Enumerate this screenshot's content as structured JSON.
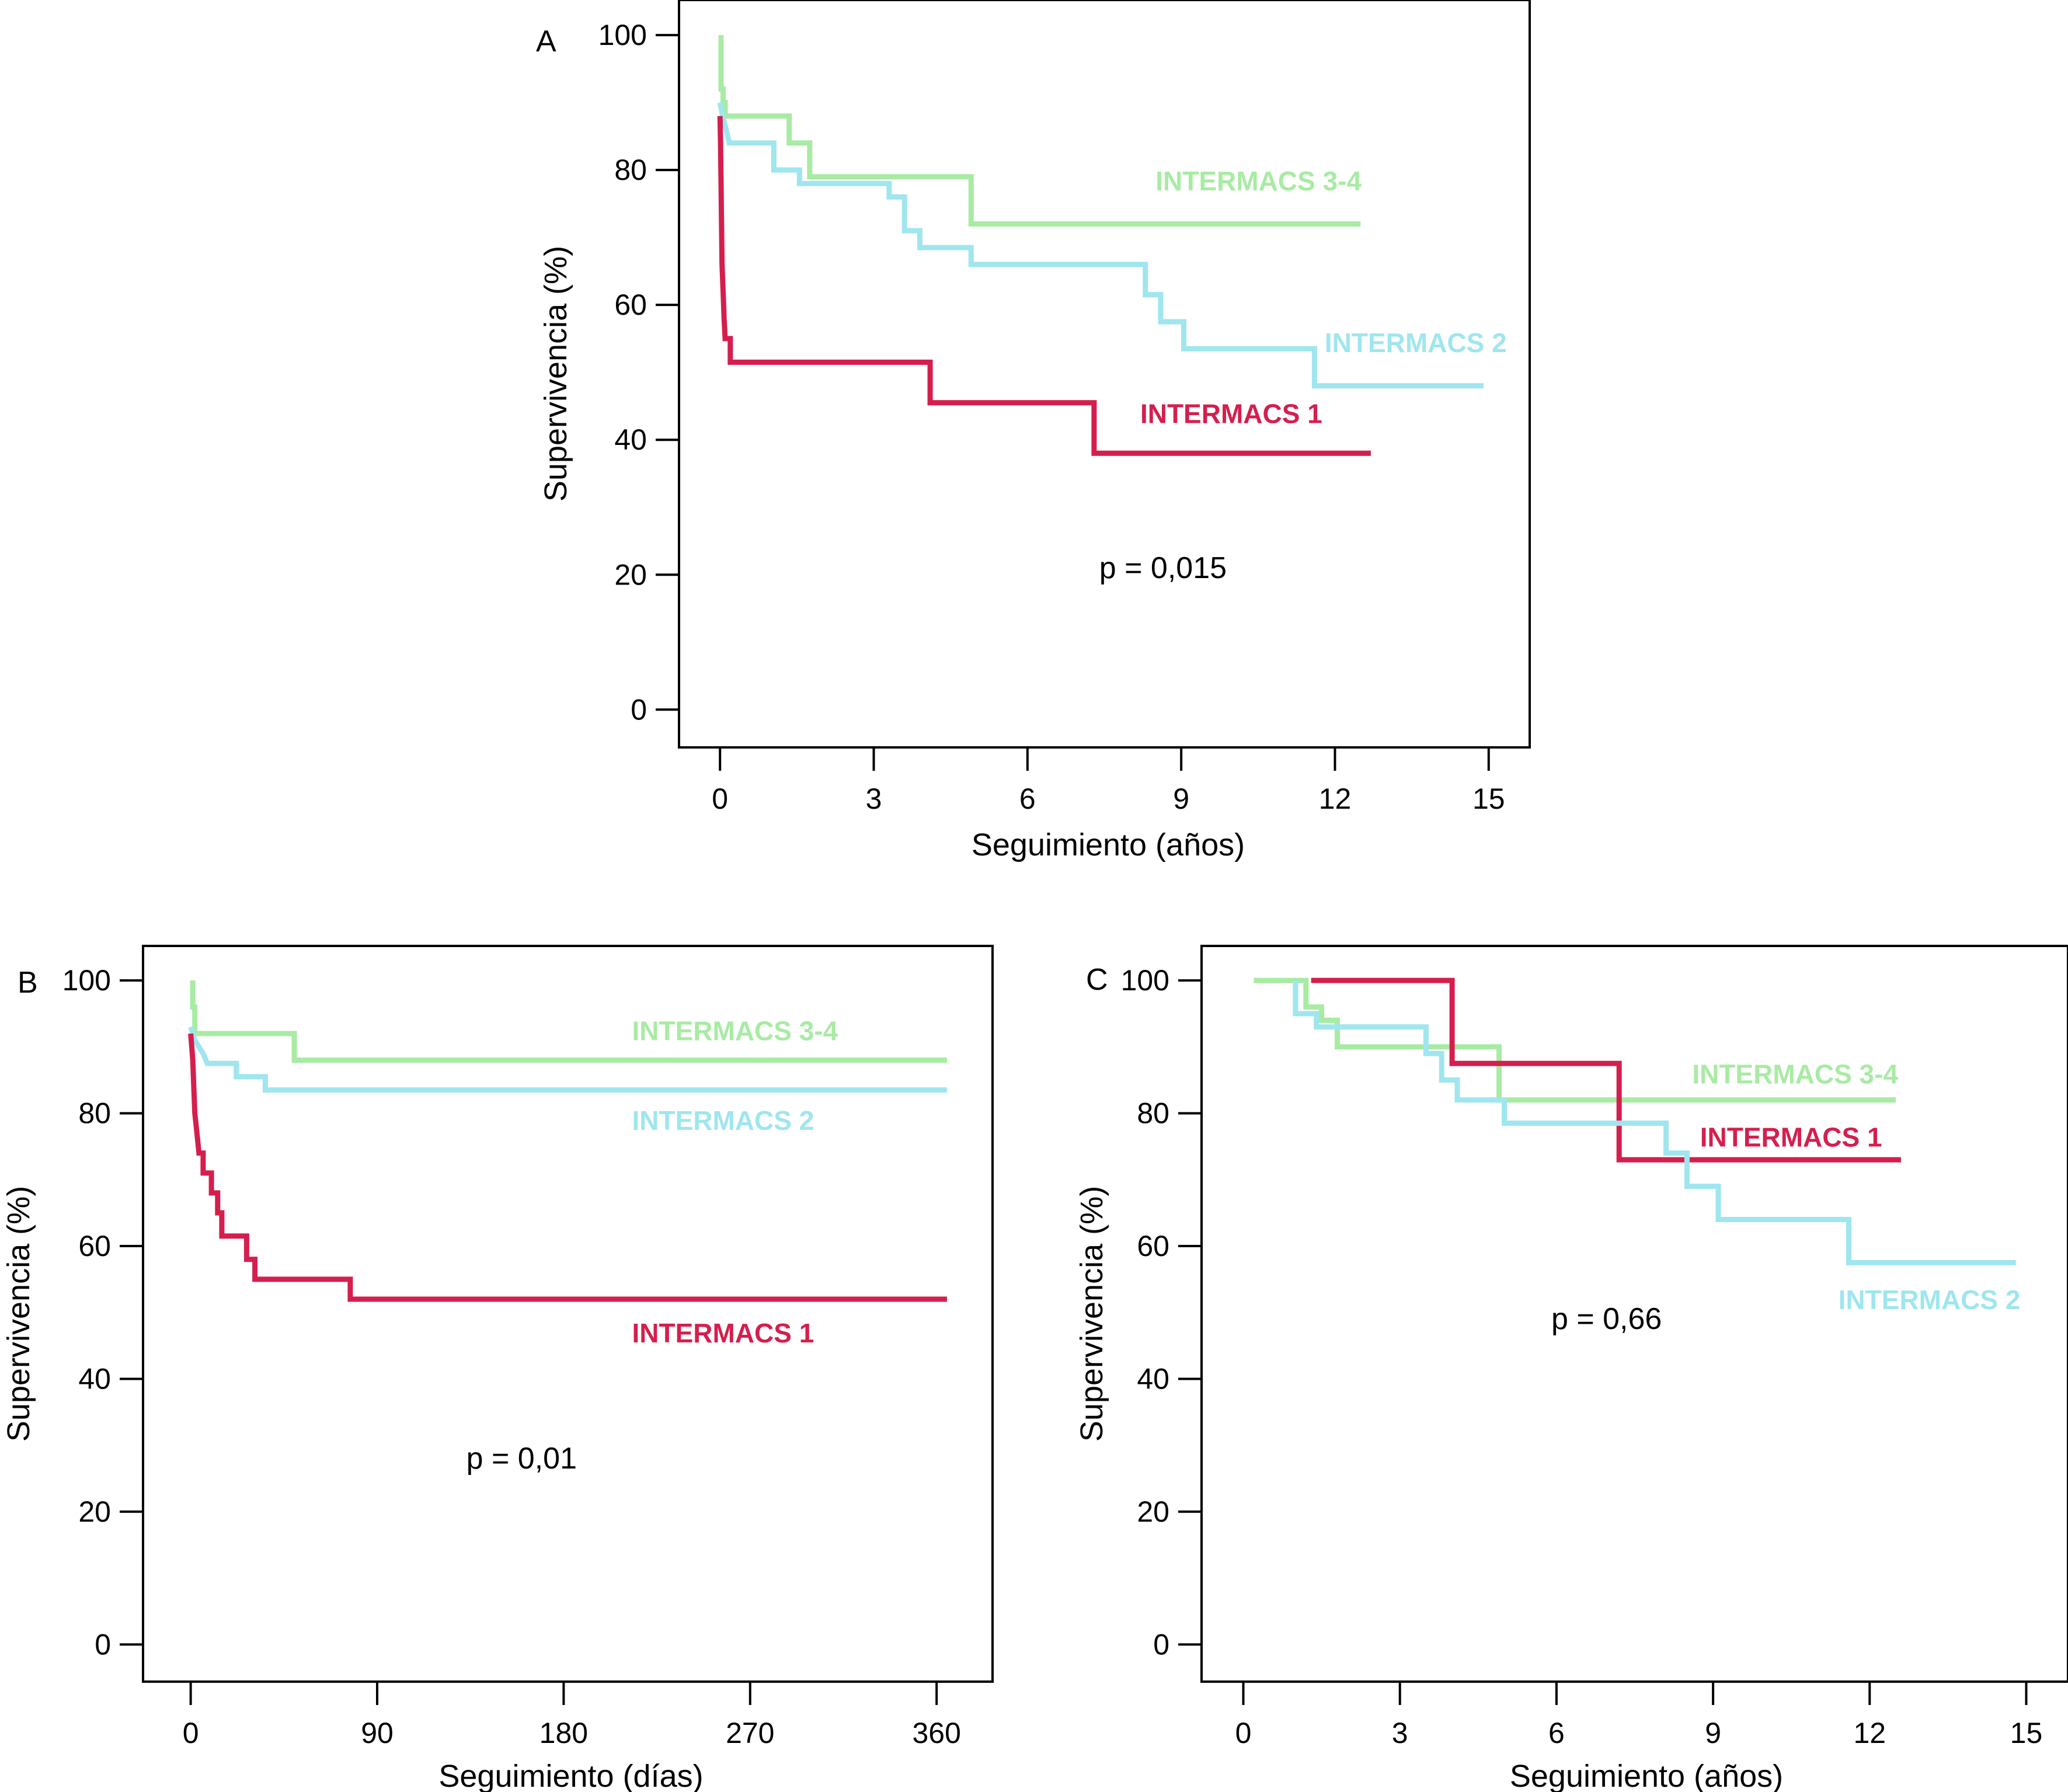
{
  "colors": {
    "intermacs1": "#D41F4E",
    "intermacs2": "#9FE6EE",
    "intermacs34": "#A8EBA3"
  },
  "chart_data": [
    {
      "id": "A",
      "type": "line",
      "panel_label": "A",
      "xlabel": "Seguimiento (años)",
      "ylabel": "Supervivencia (%)",
      "xlim": [
        -0.8,
        15.8
      ],
      "ylim": [
        -5.6,
        105.2
      ],
      "xticks": [
        0,
        3,
        6,
        9,
        12,
        15
      ],
      "xtick_labels": [
        "0",
        "3",
        "6",
        "9",
        "12",
        "15"
      ],
      "yticks": [
        0,
        20,
        40,
        60,
        80,
        100
      ],
      "ytick_labels": [
        "0",
        "20",
        "40",
        "60",
        "80",
        "100"
      ],
      "annotation": "p = 0,015",
      "annotation_at": [
        7.4,
        19.5
      ],
      "series": [
        {
          "name": "INTERMACS 3-4",
          "color_key": "intermacs34",
          "label_at": [
            8.5,
            77.0
          ],
          "points": [
            [
              0.02,
              100
            ],
            [
              0.02,
              92
            ],
            [
              0.06,
              92
            ],
            [
              0.06,
              90
            ],
            [
              0.1,
              90
            ],
            [
              0.1,
              88
            ],
            [
              1.35,
              88
            ],
            [
              1.35,
              84
            ],
            [
              1.75,
              84
            ],
            [
              1.75,
              79
            ],
            [
              4.9,
              79
            ],
            [
              4.9,
              72
            ],
            [
              12.5,
              72
            ]
          ]
        },
        {
          "name": "INTERMACS 2",
          "color_key": "intermacs2",
          "label_at": [
            11.8,
            53.0
          ],
          "points": [
            [
              0,
              90
            ],
            [
              0.05,
              88
            ],
            [
              0.12,
              86
            ],
            [
              0.18,
              84
            ],
            [
              1.05,
              84
            ],
            [
              1.05,
              80
            ],
            [
              1.55,
              80
            ],
            [
              1.55,
              78
            ],
            [
              3.3,
              78
            ],
            [
              3.3,
              76
            ],
            [
              3.6,
              76
            ],
            [
              3.6,
              71
            ],
            [
              3.9,
              71
            ],
            [
              3.9,
              68.5
            ],
            [
              4.9,
              68.5
            ],
            [
              4.9,
              66
            ],
            [
              8.3,
              66
            ],
            [
              8.3,
              61.5
            ],
            [
              8.6,
              61.5
            ],
            [
              8.6,
              57.5
            ],
            [
              9.05,
              57.5
            ],
            [
              9.05,
              53.5
            ],
            [
              11.6,
              53.5
            ],
            [
              11.6,
              48
            ],
            [
              14.9,
              48
            ]
          ]
        },
        {
          "name": "INTERMACS 1",
          "color_key": "intermacs1",
          "label_at": [
            8.2,
            42.5
          ],
          "points": [
            [
              0,
              88
            ],
            [
              0.01,
              84
            ],
            [
              0.02,
              78
            ],
            [
              0.03,
              72
            ],
            [
              0.04,
              66
            ],
            [
              0.06,
              62
            ],
            [
              0.08,
              58
            ],
            [
              0.1,
              55
            ],
            [
              0.2,
              55
            ],
            [
              0.2,
              51.5
            ],
            [
              4.1,
              51.5
            ],
            [
              4.1,
              45.5
            ],
            [
              7.3,
              45.5
            ],
            [
              7.3,
              38
            ],
            [
              12.7,
              38
            ]
          ]
        }
      ]
    },
    {
      "id": "B",
      "type": "line",
      "panel_label": "B",
      "xlabel": "Seguimiento (días)",
      "ylabel": "Supervivencia (%)",
      "xlim": [
        -23,
        387
      ],
      "ylim": [
        -5.6,
        105.2
      ],
      "xticks": [
        0,
        90,
        180,
        270,
        360
      ],
      "xtick_labels": [
        "0",
        "90",
        "180",
        "270",
        "360"
      ],
      "yticks": [
        0,
        20,
        40,
        60,
        80,
        100
      ],
      "ytick_labels": [
        "0",
        "20",
        "40",
        "60",
        "80",
        "100"
      ],
      "annotation": "p = 0,01",
      "annotation_at": [
        133,
        26.5
      ],
      "series": [
        {
          "name": "INTERMACS 3-4",
          "color_key": "intermacs34",
          "label_at": [
            213,
            91.0
          ],
          "points": [
            [
              1,
              100
            ],
            [
              1,
              96
            ],
            [
              2,
              96
            ],
            [
              2,
              92
            ],
            [
              50,
              92
            ],
            [
              50,
              88
            ],
            [
              365,
              88
            ]
          ]
        },
        {
          "name": "INTERMACS 2",
          "color_key": "intermacs2",
          "label_at": [
            213,
            77.5
          ],
          "points": [
            [
              0,
              93
            ],
            [
              2,
              91
            ],
            [
              6,
              89
            ],
            [
              8,
              87.5
            ],
            [
              22,
              87.5
            ],
            [
              22,
              85.5
            ],
            [
              36,
              85.5
            ],
            [
              36,
              83.5
            ],
            [
              365,
              83.5
            ]
          ]
        },
        {
          "name": "INTERMACS 1",
          "color_key": "intermacs1",
          "label_at": [
            213,
            45.5
          ],
          "points": [
            [
              0,
              92
            ],
            [
              1,
              88
            ],
            [
              1.5,
              84
            ],
            [
              2,
              80
            ],
            [
              3,
              77
            ],
            [
              4,
              74
            ],
            [
              6,
              74
            ],
            [
              6,
              71
            ],
            [
              10,
              71
            ],
            [
              10,
              68
            ],
            [
              13,
              68
            ],
            [
              13,
              65
            ],
            [
              15,
              65
            ],
            [
              15,
              61.5
            ],
            [
              27,
              61.5
            ],
            [
              27,
              58
            ],
            [
              31,
              58
            ],
            [
              31,
              55
            ],
            [
              77,
              55
            ],
            [
              77,
              52
            ],
            [
              365,
              52
            ]
          ]
        }
      ]
    },
    {
      "id": "C",
      "type": "line",
      "panel_label": "C",
      "xlabel": "Seguimiento (años)",
      "ylabel": "Supervivencia (%)",
      "xlim": [
        -0.8,
        15.8
      ],
      "ylim": [
        -5.6,
        105.2
      ],
      "xticks": [
        0,
        3,
        6,
        9,
        12,
        15
      ],
      "xtick_labels": [
        "0",
        "3",
        "6",
        "9",
        "12",
        "15"
      ],
      "yticks": [
        0,
        20,
        40,
        60,
        80,
        100
      ],
      "ytick_labels": [
        "0",
        "20",
        "40",
        "60",
        "80",
        "100"
      ],
      "annotation": "p = 0,66",
      "annotation_at": [
        5.9,
        47.5
      ],
      "series": [
        {
          "name": "INTERMACS 3-4",
          "color_key": "intermacs34",
          "label_at": [
            8.6,
            84.5
          ],
          "points": [
            [
              0.2,
              100
            ],
            [
              1.2,
              100
            ],
            [
              1.2,
              96
            ],
            [
              1.5,
              96
            ],
            [
              1.5,
              94
            ],
            [
              1.8,
              94
            ],
            [
              1.8,
              90
            ],
            [
              4.9,
              90
            ],
            [
              4.9,
              82
            ],
            [
              12.5,
              82
            ]
          ]
        },
        {
          "name": "INTERMACS 1",
          "color_key": "intermacs1",
          "label_at": [
            8.75,
            75.0
          ],
          "points": [
            [
              1.3,
              100
            ],
            [
              4.0,
              100
            ],
            [
              4.0,
              87.5
            ],
            [
              7.2,
              87.5
            ],
            [
              7.2,
              73
            ],
            [
              12.6,
              73
            ]
          ]
        },
        {
          "name": "INTERMACS 2",
          "color_key": "intermacs2",
          "label_at": [
            11.4,
            50.5
          ],
          "points": [
            [
              1.0,
              100
            ],
            [
              1.0,
              95
            ],
            [
              1.4,
              95
            ],
            [
              1.4,
              93
            ],
            [
              3.5,
              93
            ],
            [
              3.5,
              89
            ],
            [
              3.8,
              89
            ],
            [
              3.8,
              85
            ],
            [
              4.1,
              85
            ],
            [
              4.1,
              82
            ],
            [
              5.0,
              82
            ],
            [
              5.0,
              78.5
            ],
            [
              8.1,
              78.5
            ],
            [
              8.1,
              74
            ],
            [
              8.5,
              74
            ],
            [
              8.5,
              69
            ],
            [
              9.1,
              69
            ],
            [
              9.1,
              64
            ],
            [
              11.6,
              64
            ],
            [
              11.6,
              57.5
            ],
            [
              14.8,
              57.5
            ]
          ]
        }
      ]
    }
  ]
}
